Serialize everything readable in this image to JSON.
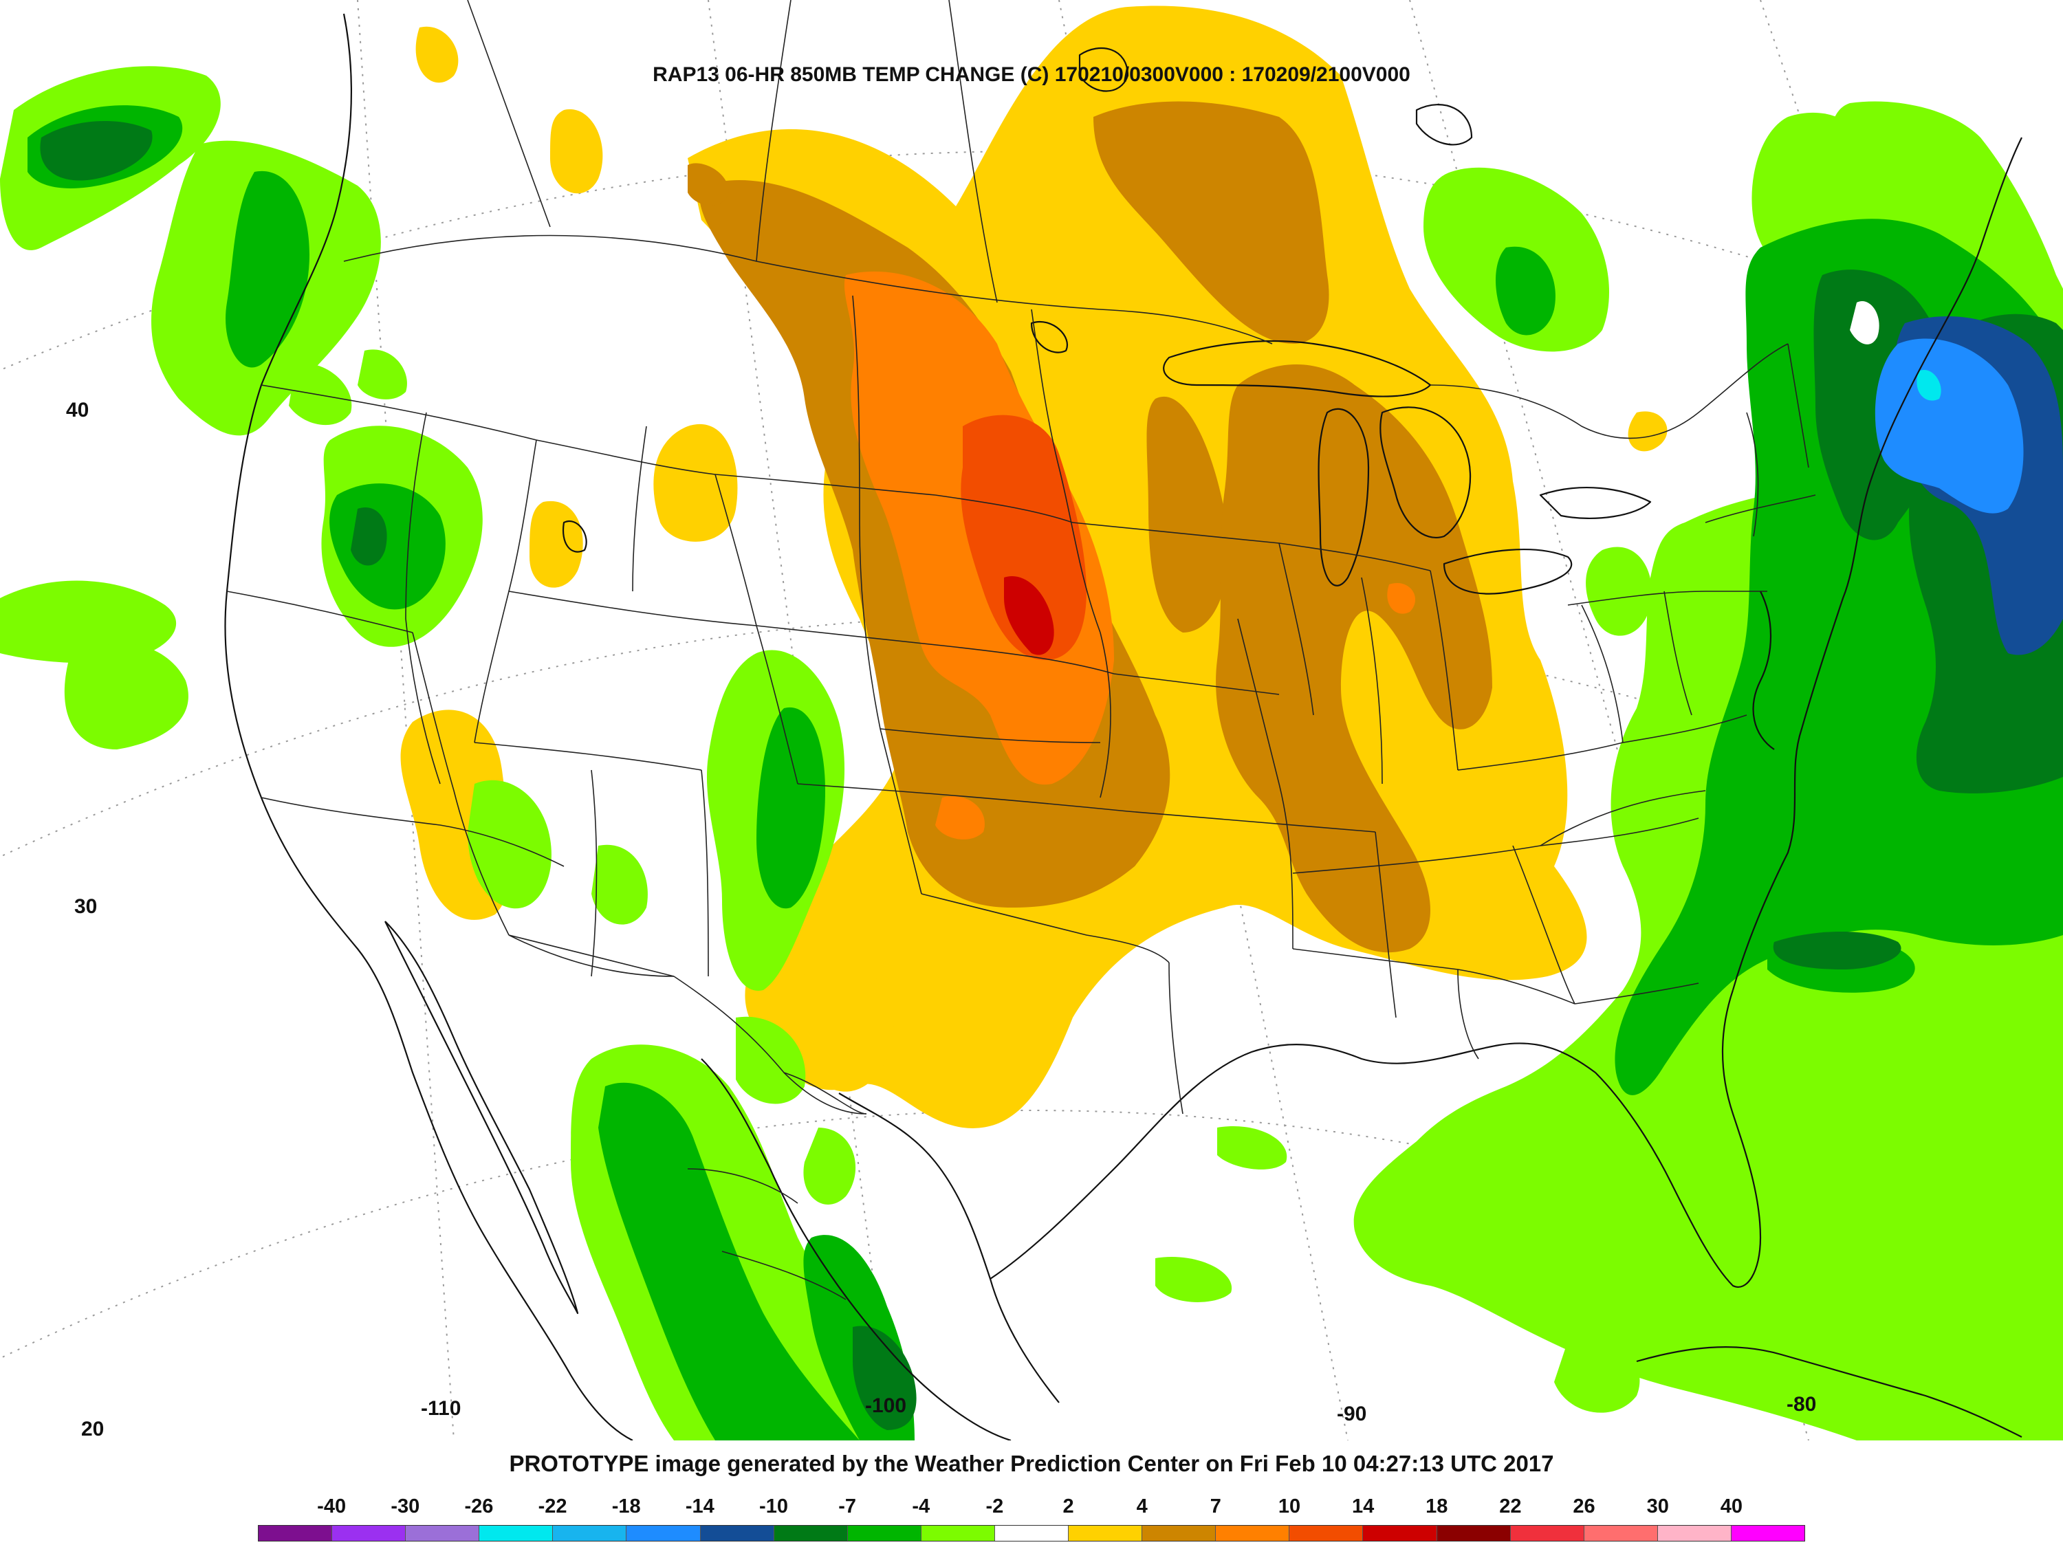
{
  "title": "RAP13 06-HR 850MB TEMP CHANGE (C) 170210/0300V000 : 170209/2100V000",
  "credit": "PROTOTYPE image generated by the Weather Prediction Center on Fri Feb 10 04:27:13 UTC 2017",
  "latitude_labels": [
    "40",
    "30",
    "20"
  ],
  "longitude_labels": [
    "-110",
    "-100",
    "-90",
    "-80"
  ],
  "colorbar": {
    "labels": [
      "-40",
      "-30",
      "-26",
      "-22",
      "-18",
      "-14",
      "-10",
      "-7",
      "-4",
      "-2",
      "2",
      "4",
      "7",
      "10",
      "14",
      "18",
      "22",
      "26",
      "30",
      "40"
    ],
    "colors": [
      "#7d0f8f",
      "#9b30f0",
      "#9b6fd8",
      "#00e8ee",
      "#18b4ee",
      "#1e8cff",
      "#134d96",
      "#007a16",
      "#00b500",
      "#7cfc00",
      "#ffffff",
      "#ffd100",
      "#cd8500",
      "#ff8000",
      "#f24d00",
      "#cd0000",
      "#8b0000",
      "#f0303c",
      "#ff6e6e",
      "#ffb4c8",
      "#ff00ff"
    ]
  },
  "legend_colors": {
    "cool_light": "#7cfc00",
    "cool_mid": "#00b500",
    "cool_dark": "#007a16",
    "cold_deep": "#134d96",
    "cold_core": "#1e8cff",
    "warm_light": "#ffd100",
    "warm_mid": "#cd8500",
    "warm_strong": "#ff8000",
    "warm_hot": "#f24d00",
    "warm_peak": "#cd0000"
  }
}
